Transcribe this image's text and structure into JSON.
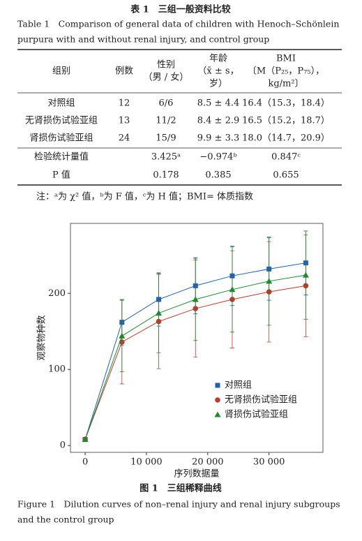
{
  "table": {
    "caption_cn": "表 1　三组一般资料比较",
    "caption_en": [
      "Table 1　Comparison of general data of children with Henoch–Schönlein",
      "purpura with and without renal injury, and control group"
    ],
    "headers": [
      [
        "组别"
      ],
      [
        "例数"
      ],
      [
        "性别",
        "（男 / 女）"
      ],
      [
        "年龄",
        "（x̄ ± s，",
        "岁）"
      ],
      [
        "BMI",
        "〔M（P₂₅，P₇₅），",
        "kg/m²〕"
      ]
    ],
    "rows": [
      [
        "对照组",
        "12",
        "6/6",
        "8.5 ± 4.4",
        "16.4（15.3，18.4）"
      ],
      [
        "无肾损伤试验亚组",
        "13",
        "11/2",
        "8.4 ± 2.9",
        "16.5（15.2，18.7）"
      ],
      [
        "肾损伤试验亚组",
        "24",
        "15/9",
        "9.9 ± 3.3",
        "18.0（14.7，20.9）"
      ],
      [
        "检验统计量值",
        null,
        "3.425ᵃ",
        "−0.974ᵇ",
        "0.847ᶜ"
      ],
      [
        "P 值",
        null,
        "0.178",
        "0.385",
        "0.655"
      ]
    ],
    "note": "注：ᵃ为 χ² 值，ᵇ为 F 值，ᶜ为 H 值；BMI= 体质指数"
  },
  "chart_data": {
    "type": "line",
    "x_label": "序列数据量",
    "y_label": "观察物种数",
    "x": [
      0,
      6000,
      12000,
      18000,
      24000,
      30000,
      36000
    ],
    "xlim": [
      -2400,
      38800
    ],
    "ylim": [
      -9,
      292
    ],
    "xticks": [
      0,
      {
        "value": 10000,
        "label": "10 000"
      },
      {
        "value": 20000,
        "label": "20 000"
      },
      {
        "value": 30000,
        "label": "30 000"
      }
    ],
    "yticks": [
      0,
      100,
      200
    ],
    "legend": "lower right",
    "series": [
      {
        "name": "对照组",
        "color": "#1f5fbf",
        "marker": "square",
        "values": [
          8,
          162,
          192,
          210,
          223,
          232,
          240
        ],
        "errors": [
          0,
          30,
          35,
          37,
          39,
          41,
          42
        ]
      },
      {
        "name": "无肾损伤试验亚组",
        "color": "#c0392b",
        "marker": "circle",
        "values": [
          8,
          136,
          163,
          180,
          192,
          202,
          210
        ],
        "errors": [
          0,
          55,
          62,
          64,
          64,
          66,
          67
        ]
      },
      {
        "name": "肾损伤试验亚组",
        "color": "#1a8a2a",
        "marker": "triangle",
        "values": [
          8,
          144,
          174,
          192,
          205,
          216,
          224
        ],
        "errors": [
          0,
          47,
          52,
          54,
          56,
          58,
          58
        ]
      }
    ]
  },
  "figure": {
    "caption_cn": "图 1　三组稀释曲线",
    "caption_en": [
      "Figure 1　Dilution curves of non–renal injury and renal injury subgroups",
      "and the control group"
    ]
  }
}
